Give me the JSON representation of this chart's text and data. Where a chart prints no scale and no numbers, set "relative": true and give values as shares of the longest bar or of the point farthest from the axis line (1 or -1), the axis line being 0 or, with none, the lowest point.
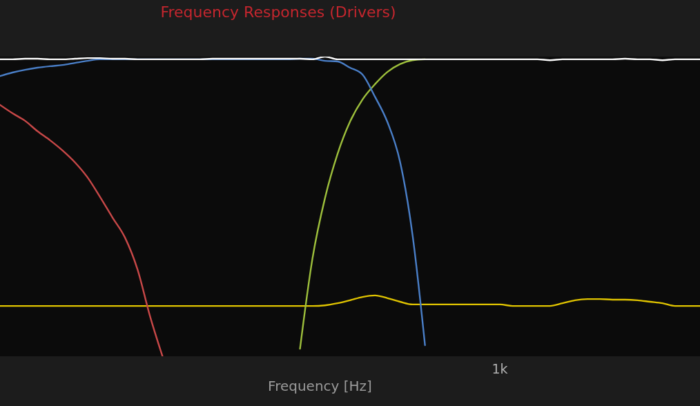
{
  "chart_data": {
    "type": "line",
    "title": "Frequency Responses (Drivers)",
    "xlabel": "Frequency [Hz]",
    "relative": true,
    "annotations": [
      "1k"
    ],
    "marker": "none",
    "line_style": "solid",
    "categories": [
      null,
      null,
      null,
      null,
      null,
      null,
      null,
      null,
      null,
      null,
      null,
      null,
      null,
      null,
      null,
      null,
      null,
      null,
      null,
      null,
      null,
      null,
      null,
      null,
      null,
      null,
      null,
      null,
      null,
      null,
      null,
      null,
      null,
      null,
      null,
      null,
      null,
      null,
      null,
      null,
      null,
      null,
      null,
      null,
      null,
      null,
      null,
      null,
      null,
      null,
      null,
      null,
      null,
      null,
      null,
      null,
      null
    ],
    "series": [
      {
        "color": "#e0c400",
        "values": [
          0.168,
          0.168,
          0.168,
          0.168,
          0.168,
          0.168,
          0.168,
          0.168,
          0.168,
          0.168,
          0.168,
          0.168,
          0.168,
          0.168,
          0.168,
          0.168,
          0.168,
          0.168,
          0.168,
          0.168,
          0.168,
          0.168,
          0.168,
          0.168,
          0.168,
          0.168,
          0.17,
          0.177,
          0.187,
          0.198,
          0.203,
          0.194,
          0.182,
          0.173,
          0.173,
          0.173,
          0.173,
          0.173,
          0.173,
          0.173,
          0.173,
          0.168,
          0.168,
          0.168,
          0.168,
          0.177,
          0.187,
          0.191,
          0.191,
          0.189,
          0.189,
          0.187,
          0.182,
          0.177,
          0.168,
          0.168,
          0.168
        ]
      },
      {
        "color": "#c84848",
        "values": [
          0.839,
          0.811,
          0.786,
          0.751,
          0.721,
          0.687,
          0.647,
          0.597,
          0.532,
          0.463,
          0.396,
          0.29,
          0.134,
          0,
          null,
          null,
          null,
          null,
          null,
          null,
          null,
          null,
          null,
          null,
          null,
          null,
          null,
          null,
          null,
          null,
          null,
          null,
          null,
          null,
          null,
          null,
          null,
          null,
          null,
          null,
          null,
          null,
          null,
          null,
          null,
          null,
          null,
          null,
          null,
          null,
          null,
          null,
          null,
          null,
          null,
          null,
          null
        ]
      },
      {
        "color": "#9ec03c",
        "values": [
          null,
          null,
          null,
          null,
          null,
          null,
          null,
          null,
          null,
          null,
          null,
          null,
          null,
          null,
          null,
          null,
          null,
          null,
          null,
          null,
          null,
          null,
          null,
          null,
          0.025,
          0.327,
          0.528,
          0.675,
          0.783,
          0.857,
          0.908,
          0.949,
          0.975,
          0.988,
          0.991,
          null,
          null,
          null,
          null,
          null,
          null,
          null,
          null,
          null,
          null,
          null,
          null,
          null,
          null,
          null,
          null,
          null,
          null,
          null,
          null,
          null,
          null
        ]
      },
      {
        "color": "#4a7fc8",
        "values": [
          0.935,
          0.947,
          0.956,
          0.963,
          0.968,
          0.972,
          0.979,
          0.986,
          0.991,
          0.991,
          0.991,
          0.991,
          0.991,
          0.991,
          0.991,
          0.991,
          0.991,
          0.991,
          0.991,
          0.991,
          0.991,
          0.991,
          0.991,
          0.991,
          0.993,
          0.993,
          0.986,
          0.984,
          0.963,
          0.94,
          0.866,
          0.781,
          0.65,
          0.406,
          0.037,
          null,
          null,
          null,
          null,
          null,
          null,
          null,
          null,
          null,
          null,
          null,
          null,
          null,
          null,
          null,
          null,
          null,
          null,
          null,
          null,
          null,
          null
        ]
      },
      {
        "color": "#ffffff",
        "values": [
          0.991,
          0.991,
          0.993,
          0.993,
          0.991,
          0.991,
          0.993,
          0.995,
          0.995,
          0.993,
          0.993,
          0.991,
          0.991,
          0.991,
          0.991,
          0.991,
          0.991,
          0.993,
          0.993,
          0.993,
          0.993,
          0.993,
          0.993,
          0.993,
          0.993,
          0.991,
          1.0,
          0.991,
          0.991,
          0.991,
          0.991,
          0.991,
          0.991,
          0.991,
          0.991,
          0.991,
          0.991,
          0.991,
          0.991,
          0.991,
          0.991,
          0.991,
          0.991,
          0.991,
          0.988,
          0.991,
          0.991,
          0.991,
          0.991,
          0.991,
          0.993,
          0.991,
          0.991,
          0.988,
          0.991,
          0.991,
          0.991
        ]
      }
    ]
  }
}
